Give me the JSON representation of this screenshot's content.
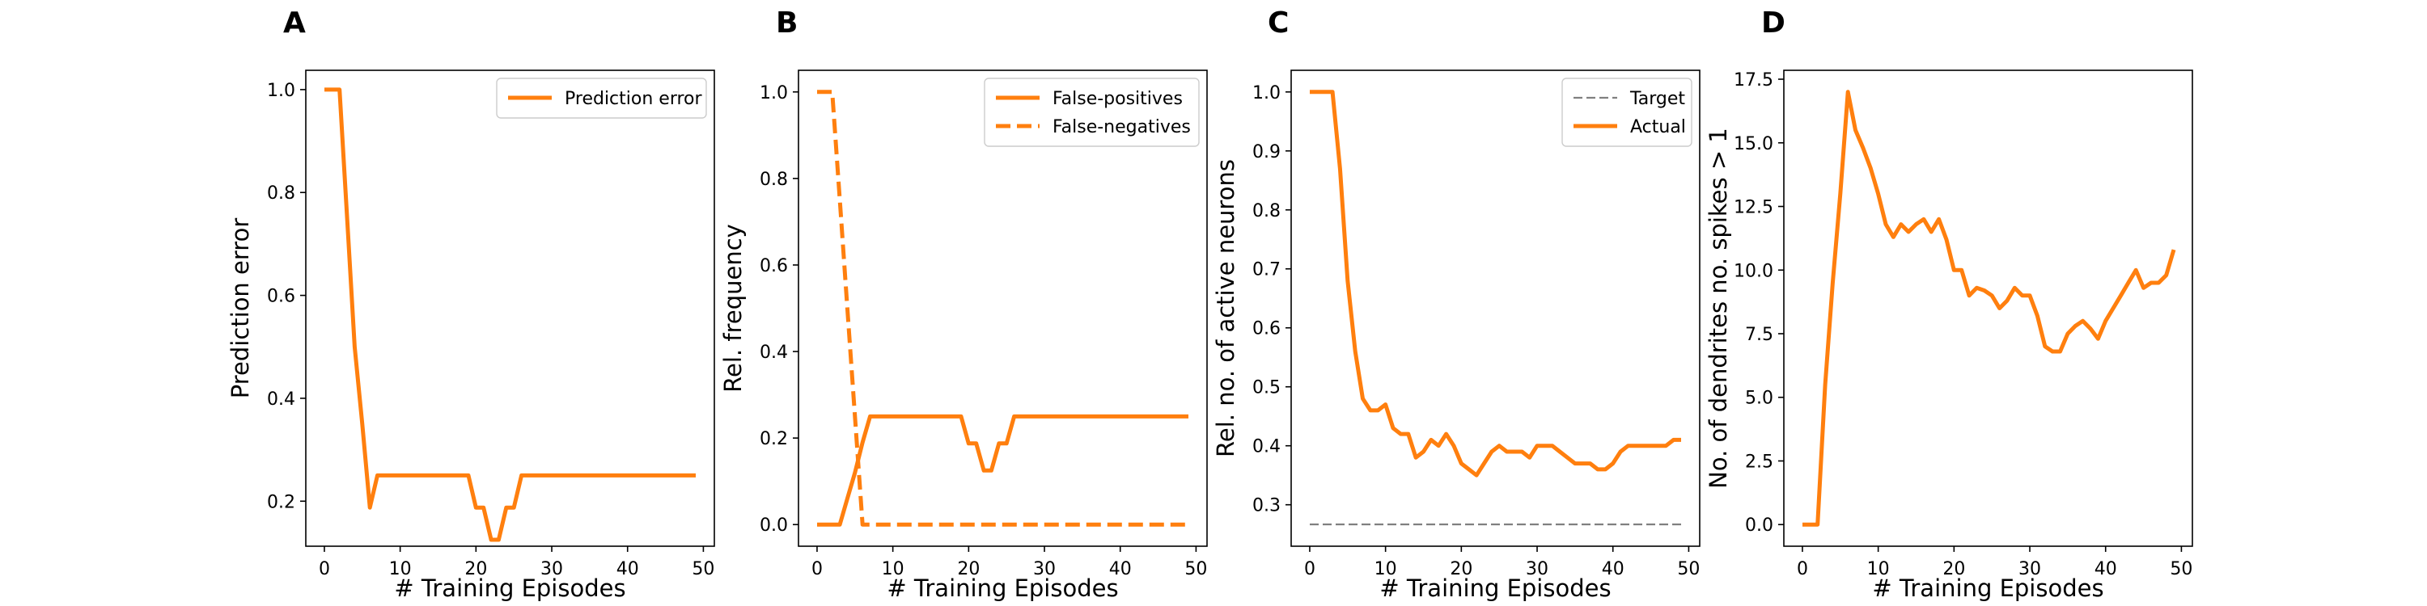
{
  "chart_data": [
    {
      "panel": "A",
      "type": "line",
      "xlabel": "# Training Episodes",
      "ylabel": "Prediction error",
      "xlim": [
        -2.45,
        51.45
      ],
      "ylim": [
        0.1125,
        1.0375
      ],
      "xticks": [
        0,
        10,
        20,
        30,
        40,
        50
      ],
      "yticks": [
        0.2,
        0.4,
        0.6,
        0.8,
        1.0
      ],
      "ytick_labels": [
        "0.2",
        "0.4",
        "0.6",
        "0.8",
        "1.0"
      ],
      "legend_loc": "upper right",
      "series": [
        {
          "name": "Prediction error",
          "color": "#ff7f0e",
          "dash": "solid",
          "x": [
            0,
            1,
            2,
            3,
            4,
            5,
            6,
            7,
            8,
            9,
            10,
            11,
            12,
            13,
            14,
            15,
            16,
            17,
            18,
            19,
            20,
            21,
            22,
            23,
            24,
            25,
            26,
            27,
            28,
            29,
            30,
            31,
            32,
            33,
            34,
            35,
            36,
            37,
            38,
            39,
            40,
            41,
            42,
            43,
            44,
            45,
            46,
            47,
            48,
            49
          ],
          "y": [
            1.0,
            1.0,
            1.0,
            0.75,
            0.5,
            0.35,
            0.1875,
            0.25,
            0.25,
            0.25,
            0.25,
            0.25,
            0.25,
            0.25,
            0.25,
            0.25,
            0.25,
            0.25,
            0.25,
            0.25,
            0.1875,
            0.1875,
            0.125,
            0.125,
            0.1875,
            0.1875,
            0.25,
            0.25,
            0.25,
            0.25,
            0.25,
            0.25,
            0.25,
            0.25,
            0.25,
            0.25,
            0.25,
            0.25,
            0.25,
            0.25,
            0.25,
            0.25,
            0.25,
            0.25,
            0.25,
            0.25,
            0.25,
            0.25,
            0.25,
            0.25
          ]
        }
      ]
    },
    {
      "panel": "B",
      "type": "line",
      "xlabel": "# Training Episodes",
      "ylabel": "Rel. frequency",
      "xlim": [
        -2.45,
        51.45
      ],
      "ylim": [
        -0.05,
        1.05
      ],
      "xticks": [
        0,
        10,
        20,
        30,
        40,
        50
      ],
      "yticks": [
        0.0,
        0.2,
        0.4,
        0.6,
        0.8,
        1.0
      ],
      "ytick_labels": [
        "0.0",
        "0.2",
        "0.4",
        "0.6",
        "0.8",
        "1.0"
      ],
      "legend_loc": "upper right",
      "series": [
        {
          "name": "False-positives",
          "color": "#ff7f0e",
          "dash": "solid",
          "x": [
            0,
            1,
            2,
            3,
            4,
            5,
            6,
            7,
            8,
            9,
            10,
            11,
            12,
            13,
            14,
            15,
            16,
            17,
            18,
            19,
            20,
            21,
            22,
            23,
            24,
            25,
            26,
            27,
            28,
            29,
            30,
            31,
            32,
            33,
            34,
            35,
            36,
            37,
            38,
            39,
            40,
            41,
            42,
            43,
            44,
            45,
            46,
            47,
            48,
            49
          ],
          "y": [
            0,
            0,
            0,
            0,
            0.06,
            0.12,
            0.19,
            0.25,
            0.25,
            0.25,
            0.25,
            0.25,
            0.25,
            0.25,
            0.25,
            0.25,
            0.25,
            0.25,
            0.25,
            0.25,
            0.1875,
            0.1875,
            0.125,
            0.125,
            0.1875,
            0.1875,
            0.25,
            0.25,
            0.25,
            0.25,
            0.25,
            0.25,
            0.25,
            0.25,
            0.25,
            0.25,
            0.25,
            0.25,
            0.25,
            0.25,
            0.25,
            0.25,
            0.25,
            0.25,
            0.25,
            0.25,
            0.25,
            0.25,
            0.25,
            0.25
          ]
        },
        {
          "name": "False-negatives",
          "color": "#ff7f0e",
          "dash": "dashed",
          "x": [
            0,
            1,
            2,
            3,
            4,
            5,
            6,
            7,
            8,
            9,
            10,
            11,
            12,
            13,
            14,
            15,
            16,
            17,
            18,
            19,
            20,
            21,
            22,
            23,
            24,
            25,
            26,
            27,
            28,
            29,
            30,
            31,
            32,
            33,
            34,
            35,
            36,
            37,
            38,
            39,
            40,
            41,
            42,
            43,
            44,
            45,
            46,
            47,
            48,
            49
          ],
          "y": [
            1.0,
            1.0,
            1.0,
            0.75,
            0.5,
            0.25,
            0,
            0,
            0,
            0,
            0,
            0,
            0,
            0,
            0,
            0,
            0,
            0,
            0,
            0,
            0,
            0,
            0,
            0,
            0,
            0,
            0,
            0,
            0,
            0,
            0,
            0,
            0,
            0,
            0,
            0,
            0,
            0,
            0,
            0,
            0,
            0,
            0,
            0,
            0,
            0,
            0,
            0,
            0,
            0
          ]
        }
      ]
    },
    {
      "panel": "C",
      "type": "line",
      "xlabel": "# Training Episodes",
      "ylabel": "Rel. no. of active neurons",
      "xlim": [
        -2.45,
        51.45
      ],
      "ylim": [
        0.2297,
        1.0367
      ],
      "xticks": [
        0,
        10,
        20,
        30,
        40,
        50
      ],
      "yticks": [
        0.3,
        0.4,
        0.5,
        0.6,
        0.7,
        0.8,
        0.9,
        1.0
      ],
      "ytick_labels": [
        "0.3",
        "0.4",
        "0.5",
        "0.6",
        "0.7",
        "0.8",
        "0.9",
        "1.0"
      ],
      "legend_loc": "upper right",
      "series": [
        {
          "name": "Target",
          "color": "#808080",
          "dash": "dashed",
          "x": [
            0,
            49
          ],
          "y": [
            0.2667,
            0.2667
          ]
        },
        {
          "name": "Actual",
          "color": "#ff7f0e",
          "dash": "solid",
          "x": [
            0,
            1,
            2,
            3,
            4,
            5,
            6,
            7,
            8,
            9,
            10,
            11,
            12,
            13,
            14,
            15,
            16,
            17,
            18,
            19,
            20,
            21,
            22,
            23,
            24,
            25,
            26,
            27,
            28,
            29,
            30,
            31,
            32,
            33,
            34,
            35,
            36,
            37,
            38,
            39,
            40,
            41,
            42,
            43,
            44,
            45,
            46,
            47,
            48,
            49
          ],
          "y": [
            1.0,
            1.0,
            1.0,
            1.0,
            0.87,
            0.68,
            0.56,
            0.48,
            0.46,
            0.46,
            0.47,
            0.43,
            0.42,
            0.42,
            0.38,
            0.39,
            0.41,
            0.4,
            0.42,
            0.4,
            0.37,
            0.36,
            0.35,
            0.37,
            0.39,
            0.4,
            0.39,
            0.39,
            0.39,
            0.38,
            0.4,
            0.4,
            0.4,
            0.39,
            0.38,
            0.37,
            0.37,
            0.37,
            0.36,
            0.36,
            0.37,
            0.39,
            0.4,
            0.4,
            0.4,
            0.4,
            0.4,
            0.4,
            0.41,
            0.41
          ]
        }
      ]
    },
    {
      "panel": "D",
      "type": "line",
      "xlabel": "# Training Episodes",
      "ylabel": "No. of dendrites no. spikes > 1",
      "xlim": [
        -2.45,
        51.45
      ],
      "ylim": [
        -0.85,
        17.85
      ],
      "xticks": [
        0,
        10,
        20,
        30,
        40,
        50
      ],
      "yticks": [
        0.0,
        2.5,
        5.0,
        7.5,
        10.0,
        12.5,
        15.0,
        17.5
      ],
      "ytick_labels": [
        "0.0",
        "2.5",
        "5.0",
        "7.5",
        "10.0",
        "12.5",
        "15.0",
        "17.5"
      ],
      "series": [
        {
          "name": "",
          "color": "#ff7f0e",
          "dash": "solid",
          "x": [
            0,
            1,
            2,
            3,
            4,
            5,
            6,
            7,
            8,
            9,
            10,
            11,
            12,
            13,
            14,
            15,
            16,
            17,
            18,
            19,
            20,
            21,
            22,
            23,
            24,
            25,
            26,
            27,
            28,
            29,
            30,
            31,
            32,
            33,
            34,
            35,
            36,
            37,
            38,
            39,
            40,
            41,
            42,
            43,
            44,
            45,
            46,
            47,
            48,
            49
          ],
          "y": [
            0,
            0,
            0,
            5.5,
            9.5,
            13.0,
            17.0,
            15.5,
            14.8,
            14.0,
            13.0,
            11.8,
            11.3,
            11.8,
            11.5,
            11.8,
            12.0,
            11.5,
            12.0,
            11.2,
            10.0,
            10.0,
            9.0,
            9.3,
            9.2,
            9.0,
            8.5,
            8.8,
            9.3,
            9.0,
            9.0,
            8.2,
            7.0,
            6.8,
            6.8,
            7.5,
            7.8,
            8.0,
            7.7,
            7.3,
            8.0,
            8.5,
            9.0,
            9.5,
            10.0,
            9.3,
            9.5,
            9.5,
            9.8,
            10.8
          ]
        }
      ]
    }
  ],
  "panel_labels": [
    "A",
    "B",
    "C",
    "D"
  ]
}
